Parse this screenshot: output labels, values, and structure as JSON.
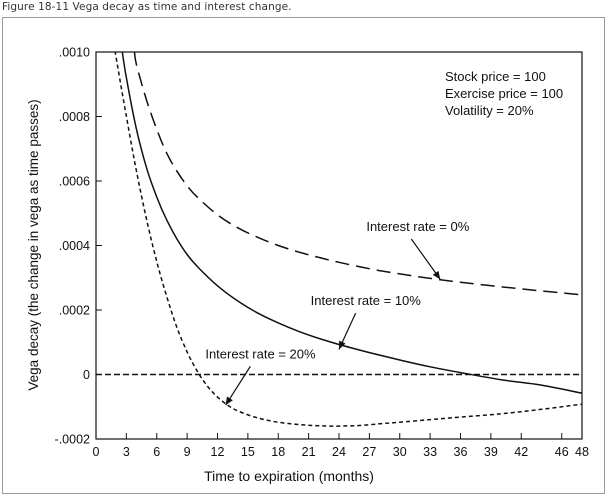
{
  "caption": "Figure 18-11 Vega decay as time and interest change.",
  "chart_data": {
    "type": "line",
    "title": "",
    "xlabel": "Time to expiration (months)",
    "ylabel": "Vega decay (the change in vega as time passes)",
    "xlim": [
      0,
      48
    ],
    "ylim": [
      -0.0002,
      0.001
    ],
    "x_ticks": [
      0,
      3,
      6,
      9,
      12,
      15,
      18,
      21,
      24,
      27,
      30,
      33,
      36,
      39,
      42,
      46,
      48
    ],
    "x_tick_labels": [
      "0",
      "3",
      "6",
      "9",
      "12",
      "15",
      "18",
      "21",
      "24",
      "27",
      "30",
      "33",
      "36",
      "39",
      "42",
      "46",
      "48"
    ],
    "y_ticks": [
      -0.0002,
      0,
      0.0002,
      0.0004,
      0.0006,
      0.0008,
      0.001
    ],
    "y_tick_labels": [
      "-.0002",
      "0",
      ".0002",
      ".0004",
      ".0006",
      ".0008",
      ".0010"
    ],
    "grid": false,
    "reference_line": {
      "y": 0,
      "style": "dashed"
    },
    "parameters": [
      "Stock price = 100",
      "Exercise price = 100",
      "Volatility = 20%"
    ],
    "series": [
      {
        "name": "Interest rate = 0%",
        "style": "long-dash",
        "x": [
          3.8,
          4,
          5,
          6,
          7,
          8,
          9,
          10,
          12,
          14,
          16,
          18,
          20,
          22,
          24,
          27,
          30,
          33,
          36,
          40,
          44,
          48
        ],
        "y": [
          0.001,
          0.00096,
          0.00085,
          0.00076,
          0.000685,
          0.00063,
          0.000585,
          0.00055,
          0.000495,
          0.000455,
          0.000425,
          0.0004,
          0.00038,
          0.000363,
          0.000348,
          0.000328,
          0.000312,
          0.000298,
          0.000286,
          0.000272,
          0.000259,
          0.000247
        ]
      },
      {
        "name": "Interest rate = 10%",
        "style": "solid",
        "x": [
          2.6,
          3,
          4,
          5,
          6,
          7,
          8,
          9,
          10,
          12,
          14,
          16,
          18,
          20,
          22,
          24,
          27,
          30,
          33,
          36,
          40,
          44,
          48
        ],
        "y": [
          0.001,
          0.00092,
          0.00076,
          0.00064,
          0.00055,
          0.000478,
          0.00042,
          0.000372,
          0.000335,
          0.000275,
          0.000228,
          0.00019,
          0.00016,
          0.000134,
          0.000112,
          9.3e-05,
          6.8e-05,
          4.5e-05,
          2.4e-05,
          6e-06,
          -1.6e-05,
          -3.3e-05,
          -5.8e-05
        ]
      },
      {
        "name": "Interest rate = 20%",
        "style": "short-dash",
        "x": [
          1.9,
          2,
          3,
          4,
          5,
          6,
          7,
          8,
          9,
          10,
          11,
          12,
          13,
          14,
          16,
          18,
          20,
          22,
          24,
          26,
          28,
          30,
          33,
          36,
          40,
          44,
          48
        ],
        "y": [
          0.001,
          0.00098,
          0.0008,
          0.00063,
          0.00048,
          0.00035,
          0.00024,
          0.000145,
          7e-05,
          1e-05,
          -3.6e-05,
          -7e-05,
          -9.5e-05,
          -0.000113,
          -0.000135,
          -0.000148,
          -0.000155,
          -0.000159,
          -0.00016,
          -0.000158,
          -0.000153,
          -0.000148,
          -0.00014,
          -0.000132,
          -0.000122,
          -0.000108,
          -9.2e-05
        ]
      }
    ],
    "annotations": [
      {
        "text": "Interest rate = 0%",
        "x": 26.7,
        "y": 0.000445,
        "arrow_to": [
          34,
          0.000295
        ]
      },
      {
        "text": "Interest rate = 10%",
        "x": 21.2,
        "y": 0.000215,
        "arrow_to": [
          24,
          7.8e-05
        ]
      },
      {
        "text": "Interest rate = 20%",
        "x": 10.8,
        "y": 5e-05,
        "arrow_to": [
          12.8,
          -9.5e-05
        ]
      }
    ]
  }
}
